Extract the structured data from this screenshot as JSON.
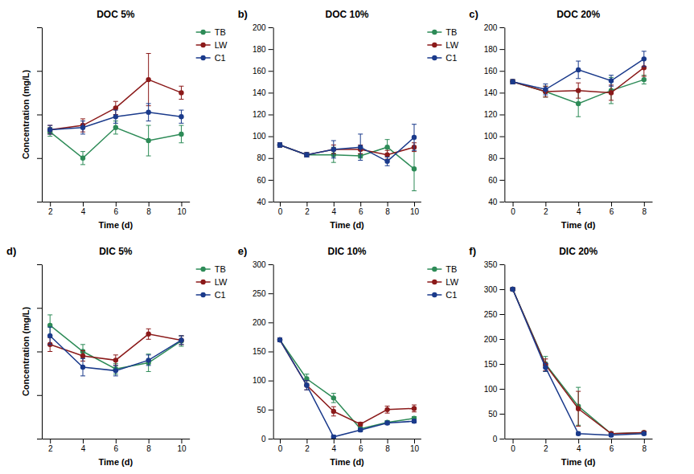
{
  "chart_data": [
    {
      "type": "line",
      "title": "DOC 5%",
      "xlabel": "Time (d)",
      "ylabel": "Concentration (mg/L)",
      "x": [
        2,
        4,
        6,
        8,
        10
      ],
      "xlim": [
        1.5,
        10.5
      ],
      "xticks": [
        2,
        4,
        6,
        8,
        10
      ],
      "ylim": [
        40,
        120
      ],
      "yticks": [
        40,
        60,
        80,
        100,
        120
      ],
      "tick_labels": "x",
      "legend": "upper right",
      "marker": "circle",
      "series": [
        {
          "name": "TB",
          "color": "#2d8b57",
          "values": [
            72,
            60,
            74,
            68,
            71
          ],
          "errors": [
            2,
            3,
            3,
            7,
            4
          ]
        },
        {
          "name": "LW",
          "color": "#8b1a1a",
          "values": [
            73,
            75,
            83,
            96,
            90
          ],
          "errors": [
            2,
            3,
            3,
            12,
            3
          ]
        },
        {
          "name": "C1",
          "color": "#1a3a8b",
          "values": [
            73,
            74,
            79,
            81,
            79
          ],
          "errors": [
            2,
            3,
            3,
            4,
            3
          ]
        }
      ]
    },
    {
      "type": "line",
      "title": "DOC 10%",
      "xlabel": "Time (d)",
      "annotations": [
        "b)"
      ],
      "x": [
        0,
        2,
        4,
        6,
        8,
        10
      ],
      "xlim": [
        -0.5,
        10.5
      ],
      "xticks": [
        0,
        2,
        4,
        6,
        8,
        10
      ],
      "ylim": [
        40,
        200
      ],
      "yticks": [
        40,
        60,
        80,
        100,
        120,
        140,
        160,
        180,
        200
      ],
      "legend": "upper right",
      "marker": "circle",
      "series": [
        {
          "name": "TB",
          "color": "#2d8b57",
          "values": [
            92,
            83,
            83,
            82,
            90,
            70
          ],
          "errors": [
            2,
            2,
            7,
            2,
            7,
            20
          ]
        },
        {
          "name": "LW",
          "color": "#8b1a1a",
          "values": [
            92,
            83,
            88,
            88,
            83,
            90
          ],
          "errors": [
            2,
            2,
            4,
            4,
            4,
            4
          ]
        },
        {
          "name": "C1",
          "color": "#1a3a8b",
          "values": [
            92,
            83,
            88,
            90,
            77,
            99
          ],
          "errors": [
            2,
            2,
            8,
            12,
            4,
            12
          ]
        }
      ]
    },
    {
      "type": "line",
      "title": "DOC 20%",
      "xlabel": "Time (d)",
      "annotations": [
        "c)"
      ],
      "x": [
        0,
        2,
        4,
        6,
        8
      ],
      "xlim": [
        -0.5,
        8.5
      ],
      "xticks": [
        0,
        2,
        4,
        6,
        8
      ],
      "ylim": [
        40,
        200
      ],
      "yticks": [
        40,
        60,
        80,
        100,
        120,
        140,
        160,
        180,
        200
      ],
      "marker": "circle",
      "series": [
        {
          "name": "TB",
          "color": "#2d8b57",
          "values": [
            150,
            141,
            130,
            142,
            152
          ],
          "errors": [
            2,
            5,
            12,
            12,
            4
          ]
        },
        {
          "name": "LW",
          "color": "#8b1a1a",
          "values": [
            150,
            141,
            142,
            140,
            163
          ],
          "errors": [
            2,
            5,
            7,
            7,
            8
          ]
        },
        {
          "name": "C1",
          "color": "#1a3a8b",
          "values": [
            150,
            143,
            161,
            151,
            171
          ],
          "errors": [
            2,
            5,
            8,
            5,
            7
          ]
        }
      ]
    },
    {
      "type": "line",
      "title": "DIC 5%",
      "xlabel": "Time (d)",
      "ylabel": "Concentration (mg/L)",
      "annotations": [
        "d)"
      ],
      "x": [
        2,
        4,
        6,
        8,
        10
      ],
      "xlim": [
        1.5,
        10.5
      ],
      "xticks": [
        2,
        4,
        6,
        8,
        10
      ],
      "ylim": [
        0,
        200
      ],
      "yticks": [
        0,
        50,
        100,
        150,
        200
      ],
      "tick_labels": "x",
      "legend": "upper right",
      "marker": "circle",
      "series": [
        {
          "name": "TB",
          "color": "#2d8b57",
          "values": [
            130,
            100,
            80,
            87,
            112
          ],
          "errors": [
            12,
            8,
            6,
            10,
            6
          ]
        },
        {
          "name": "LW",
          "color": "#8b1a1a",
          "values": [
            108,
            95,
            90,
            120,
            113
          ],
          "errors": [
            8,
            6,
            6,
            6,
            5
          ]
        },
        {
          "name": "C1",
          "color": "#1a3a8b",
          "values": [
            118,
            82,
            78,
            90,
            113
          ],
          "errors": [
            10,
            10,
            6,
            6,
            5
          ]
        }
      ]
    },
    {
      "type": "line",
      "title": "DIC 10%",
      "xlabel": "Time (d)",
      "annotations": [
        "e)"
      ],
      "x": [
        0,
        2,
        4,
        6,
        8,
        10
      ],
      "xlim": [
        -0.5,
        10.5
      ],
      "xticks": [
        0,
        2,
        4,
        6,
        8,
        10
      ],
      "ylim": [
        0,
        300
      ],
      "yticks": [
        0,
        50,
        100,
        150,
        200,
        250,
        300
      ],
      "legend": "upper right",
      "marker": "circle",
      "series": [
        {
          "name": "TB",
          "color": "#2d8b57",
          "values": [
            170,
            103,
            70,
            17,
            28,
            35
          ],
          "errors": [
            3,
            8,
            8,
            3,
            3,
            3
          ]
        },
        {
          "name": "LW",
          "color": "#8b1a1a",
          "values": [
            170,
            92,
            47,
            25,
            50,
            52
          ],
          "errors": [
            3,
            8,
            8,
            3,
            6,
            6
          ]
        },
        {
          "name": "C1",
          "color": "#1a3a8b",
          "values": [
            170,
            92,
            3,
            15,
            27,
            30
          ],
          "errors": [
            3,
            8,
            3,
            3,
            3,
            3
          ]
        }
      ]
    },
    {
      "type": "line",
      "title": "DIC 20%",
      "xlabel": "Time (d)",
      "annotations": [
        "f)"
      ],
      "x": [
        0,
        2,
        4,
        6,
        8
      ],
      "xlim": [
        -0.5,
        8.5
      ],
      "xticks": [
        0,
        2,
        4,
        6,
        8
      ],
      "ylim": [
        0,
        350
      ],
      "yticks": [
        0,
        50,
        100,
        150,
        200,
        250,
        300,
        350
      ],
      "marker": "circle",
      "series": [
        {
          "name": "TB",
          "color": "#2d8b57",
          "values": [
            300,
            150,
            65,
            10,
            12
          ],
          "errors": [
            3,
            15,
            38,
            3,
            3
          ]
        },
        {
          "name": "LW",
          "color": "#8b1a1a",
          "values": [
            300,
            148,
            60,
            10,
            12
          ],
          "errors": [
            3,
            12,
            35,
            3,
            3
          ]
        },
        {
          "name": "C1",
          "color": "#1a3a8b",
          "values": [
            300,
            143,
            10,
            7,
            10
          ],
          "errors": [
            3,
            8,
            3,
            3,
            3
          ]
        }
      ]
    }
  ]
}
